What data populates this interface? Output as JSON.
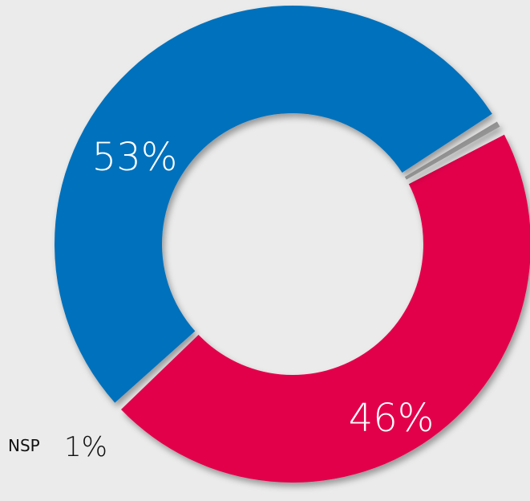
{
  "chart_data": {
    "type": "pie",
    "style": "donut",
    "slices": [
      {
        "label": "",
        "value": 53,
        "display": "53%",
        "color": "#0071bc"
      },
      {
        "label": "",
        "value": 46,
        "display": "46%",
        "color": "#e2004b"
      },
      {
        "label": "NSP",
        "value": 1,
        "display": "1%",
        "color": "#8c8c8c"
      }
    ]
  }
}
